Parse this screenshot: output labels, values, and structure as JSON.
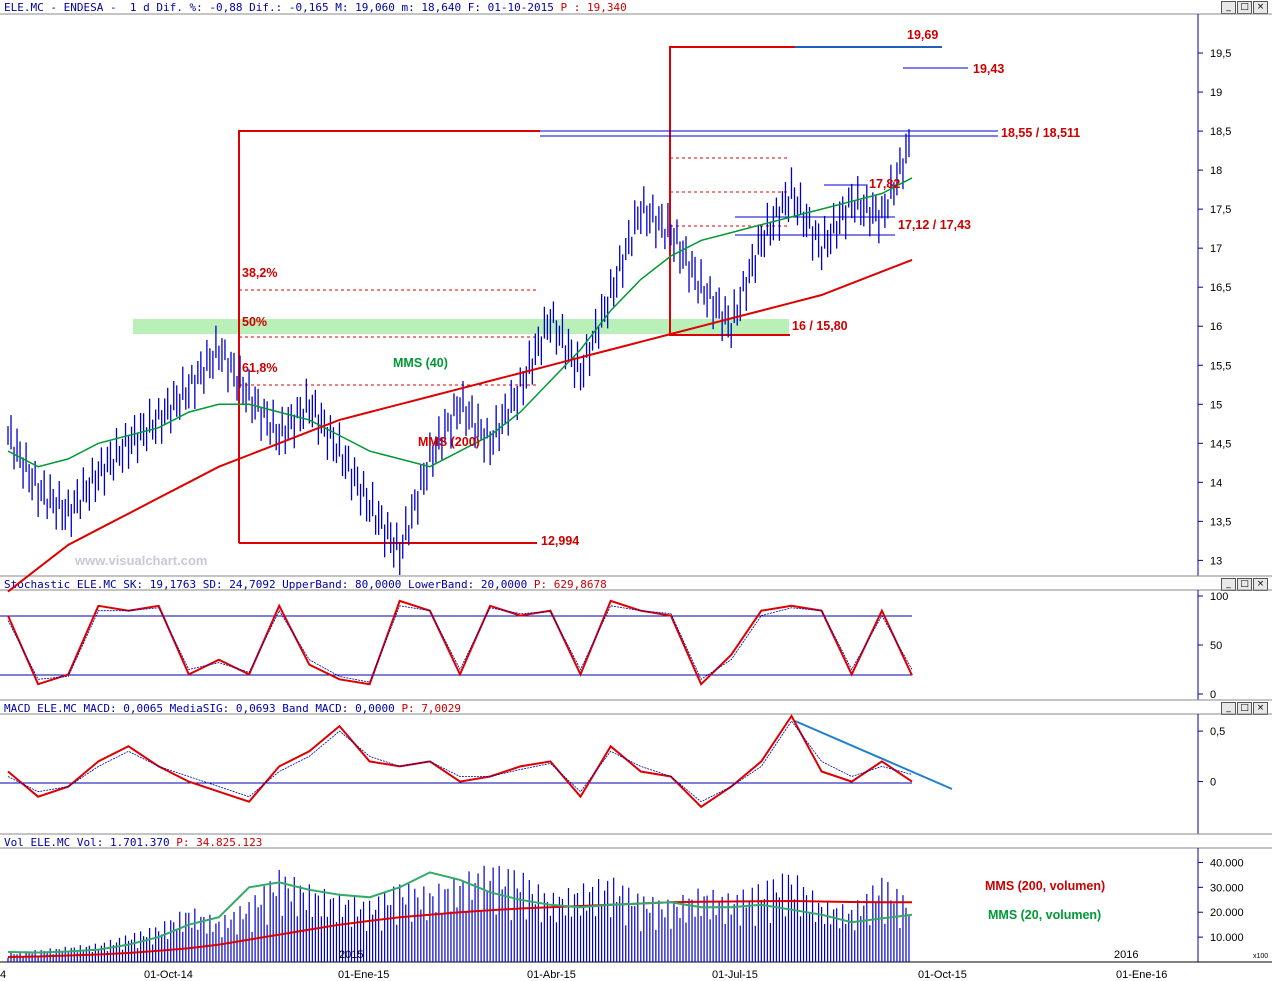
{
  "header": {
    "symbol": "ELE.MC",
    "name": "ENDESA",
    "interval": "1 d",
    "dif_pct": "-0,88",
    "dif": "-0,165",
    "max": "19,060",
    "min": "18,640",
    "date": "01-10-2015",
    "price": "19,340"
  },
  "window_buttons": [
    "_",
    "□",
    "×"
  ],
  "watermark": "www.visualchart.com",
  "colors": {
    "price": "#0000cc",
    "mms40": "#009933",
    "mms200": "#cc0000",
    "annot": "#cc0000",
    "grid": "#0000aa",
    "zone": "#b8f0b8"
  },
  "chart_data": [
    {
      "type": "line",
      "id": "price",
      "title": "",
      "ylim": [
        12.8,
        20.0
      ],
      "yticks": [
        "13",
        "13,5",
        "14",
        "14,5",
        "15",
        "15,5",
        "16",
        "16,5",
        "17",
        "17,5",
        "18",
        "18,5",
        "19",
        "19,5"
      ],
      "ytick_values": [
        13,
        13.5,
        14,
        14.5,
        15,
        15.5,
        16,
        16.5,
        17,
        17.5,
        18,
        18.5,
        19,
        19.5
      ],
      "x": [
        0,
        10,
        20,
        30,
        40,
        50,
        60,
        70,
        80,
        90,
        100,
        110,
        120,
        130,
        140,
        150,
        160,
        170,
        180,
        190,
        200,
        210,
        220,
        230,
        240,
        250,
        260,
        270,
        280,
        290,
        300
      ],
      "series": [
        {
          "name": "",
          "values": [
            14.6,
            13.9,
            13.6,
            14.1,
            14.5,
            14.8,
            15.2,
            15.7,
            15.1,
            14.6,
            15.0,
            14.4,
            13.7,
            13.1,
            14.3,
            15.0,
            14.5,
            15.2,
            16.1,
            15.4,
            16.4,
            17.5,
            17.2,
            16.5,
            16.0,
            17.1,
            17.7,
            17.0,
            17.6,
            17.4,
            18.4
          ]
        },
        {
          "name": "MMS (40)",
          "values": [
            14.4,
            14.2,
            14.3,
            14.5,
            14.6,
            14.7,
            14.9,
            15.0,
            15.0,
            14.9,
            14.8,
            14.6,
            14.4,
            14.3,
            14.2,
            14.4,
            14.6,
            14.9,
            15.3,
            15.7,
            16.2,
            16.6,
            16.9,
            17.1,
            17.2,
            17.3,
            17.4,
            17.5,
            17.6,
            17.7,
            17.9
          ]
        },
        {
          "name": "MMS (200)",
          "values": [
            12.6,
            12.9,
            13.2,
            13.4,
            13.6,
            13.8,
            14.0,
            14.2,
            14.35,
            14.5,
            14.65,
            14.8,
            14.9,
            15.0,
            15.1,
            15.2,
            15.3,
            15.4,
            15.5,
            15.6,
            15.7,
            15.8,
            15.9,
            16.0,
            16.1,
            16.2,
            16.3,
            16.4,
            16.55,
            16.7,
            16.85
          ]
        }
      ],
      "annotations": [
        "19,69",
        "19,43",
        "18,55 / 18,511",
        "17,82",
        "17,12 / 17,43",
        "16 / 15,80",
        "12,994",
        "38,2%",
        "50%",
        "61,8%",
        "MMS (40)",
        "MMS (200)"
      ]
    },
    {
      "type": "line",
      "id": "stochastic",
      "title": "Stochastic_ELE.MC",
      "values_text": {
        "SK": "19,1763",
        "SD": "24,7092",
        "UpperBand": "80,0000",
        "LowerBand": "20,0000",
        "P": "629,8678"
      },
      "ylim": [
        0,
        100
      ],
      "yticks": [
        "0",
        "50",
        "100"
      ],
      "ytick_values": [
        0,
        50,
        100
      ],
      "bands": [
        20,
        80
      ],
      "x": [
        0,
        10,
        20,
        30,
        40,
        50,
        60,
        70,
        80,
        90,
        100,
        110,
        120,
        130,
        140,
        150,
        160,
        170,
        180,
        190,
        200,
        210,
        220,
        230,
        240,
        250,
        260,
        270,
        280,
        290,
        300
      ],
      "series": [
        {
          "name": "SK",
          "values": [
            80,
            10,
            20,
            90,
            85,
            90,
            20,
            35,
            20,
            90,
            30,
            15,
            10,
            95,
            85,
            20,
            90,
            80,
            85,
            20,
            95,
            85,
            80,
            10,
            40,
            85,
            90,
            85,
            20,
            85,
            19
          ]
        },
        {
          "name": "SD",
          "values": [
            75,
            15,
            18,
            85,
            85,
            88,
            25,
            32,
            22,
            85,
            35,
            18,
            12,
            90,
            85,
            25,
            88,
            82,
            84,
            25,
            90,
            85,
            82,
            15,
            35,
            80,
            88,
            85,
            25,
            80,
            25
          ]
        }
      ]
    },
    {
      "type": "line",
      "id": "macd",
      "title": "MACD_ELE.MC",
      "values_text": {
        "MACD": "0,0065",
        "MediaSIG": "0,0693",
        "Band_MACD": "0,0000",
        "P": "7,0029"
      },
      "ylim": [
        -0.5,
        0.65
      ],
      "yticks": [
        "0",
        "0,5"
      ],
      "ytick_values": [
        0,
        0.5
      ],
      "x": [
        0,
        10,
        20,
        30,
        40,
        50,
        60,
        70,
        80,
        90,
        100,
        110,
        120,
        130,
        140,
        150,
        160,
        170,
        180,
        190,
        200,
        210,
        220,
        230,
        240,
        250,
        260,
        270,
        280,
        290,
        300
      ],
      "series": [
        {
          "name": "MACD",
          "values": [
            0.1,
            -0.15,
            -0.05,
            0.2,
            0.35,
            0.15,
            0.0,
            -0.1,
            -0.2,
            0.15,
            0.3,
            0.55,
            0.2,
            0.15,
            0.2,
            0.0,
            0.05,
            0.15,
            0.2,
            -0.15,
            0.35,
            0.1,
            0.05,
            -0.25,
            -0.05,
            0.2,
            0.65,
            0.1,
            0.0,
            0.2,
            0.0
          ]
        },
        {
          "name": "MediaSIG",
          "values": [
            0.05,
            -0.1,
            -0.05,
            0.15,
            0.3,
            0.15,
            0.05,
            -0.05,
            -0.15,
            0.1,
            0.25,
            0.5,
            0.25,
            0.15,
            0.2,
            0.05,
            0.05,
            0.12,
            0.18,
            -0.1,
            0.3,
            0.15,
            0.05,
            -0.2,
            -0.05,
            0.15,
            0.6,
            0.2,
            0.05,
            0.15,
            0.07
          ]
        }
      ]
    },
    {
      "type": "bar",
      "id": "volume",
      "title": "Vol_ELE.MC",
      "values_text": {
        "Vol": "1.701.370",
        "P": "34.825.123"
      },
      "ylim": [
        0,
        45000
      ],
      "yticks": [
        "10.000",
        "20.000",
        "30.000",
        "40.000"
      ],
      "ytick_values": [
        10000,
        20000,
        30000,
        40000
      ],
      "unit": "x100",
      "x": [
        0,
        10,
        20,
        30,
        40,
        50,
        60,
        70,
        80,
        90,
        100,
        110,
        120,
        130,
        140,
        150,
        160,
        170,
        180,
        190,
        200,
        210,
        220,
        230,
        240,
        250,
        260,
        270,
        280,
        290,
        300
      ],
      "series": [
        {
          "name": "",
          "values": [
            3000,
            4000,
            5000,
            6000,
            9000,
            12000,
            18000,
            14000,
            20000,
            30000,
            25000,
            22000,
            20000,
            26000,
            24000,
            28000,
            32000,
            30000,
            22000,
            25000,
            28000,
            22000,
            20000,
            24000,
            22000,
            26000,
            30000,
            20000,
            18000,
            28000,
            20000
          ]
        },
        {
          "name": "MMS (200, volumen)",
          "values": [
            2000,
            2200,
            2600,
            3000,
            3600,
            4500,
            5500,
            7000,
            9000,
            11000,
            13000,
            15000,
            16500,
            18000,
            19000,
            20000,
            20800,
            21500,
            22000,
            22500,
            23000,
            23500,
            24000,
            24200,
            24300,
            24400,
            24500,
            24300,
            24100,
            24000,
            24000
          ]
        },
        {
          "name": "MMS (20, volumen)",
          "values": [
            4000,
            3800,
            4200,
            5000,
            7000,
            10000,
            15000,
            18000,
            30000,
            32000,
            29000,
            27000,
            26000,
            30000,
            36000,
            33000,
            28000,
            25000,
            23000,
            22000,
            23000,
            23500,
            24000,
            22000,
            22000,
            23000,
            21000,
            19000,
            16000,
            17500,
            19000
          ]
        }
      ]
    }
  ],
  "x_axis": {
    "labels": [
      "4",
      "01-Oct-14",
      "01-Ene-15",
      "01-Abr-15",
      "01-Jul-15",
      "01-Oct-15",
      "01-Ene-16"
    ],
    "year_labels": [
      "2015",
      "2016"
    ]
  },
  "labels": {
    "dif_pct": "%:",
    "dif": "Dif.:",
    "max": "M:",
    "min": "m:",
    "date": "F:",
    "price": "P :",
    "dif_word": "Dif."
  }
}
